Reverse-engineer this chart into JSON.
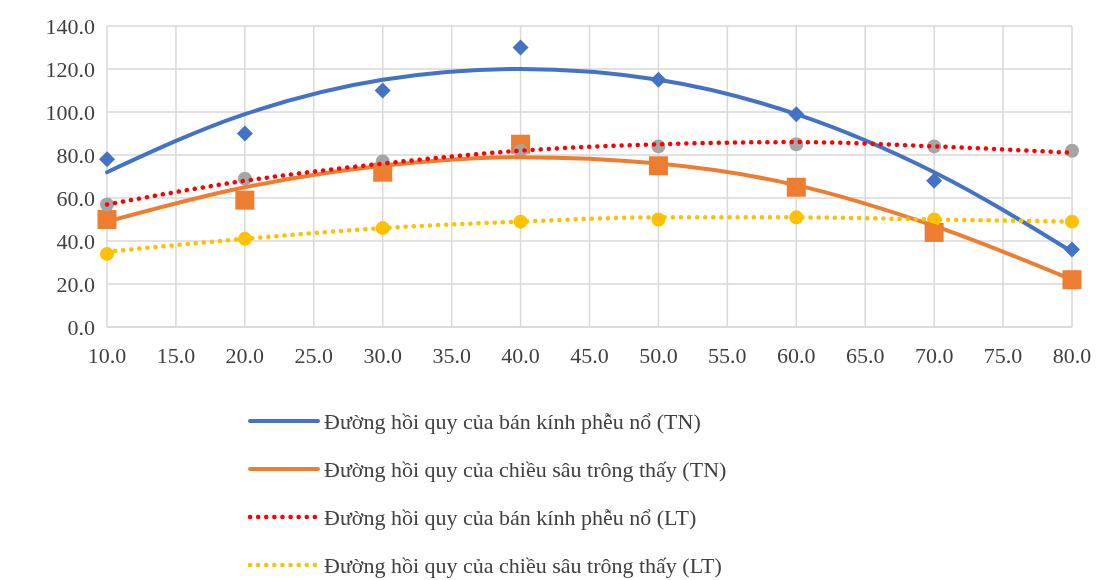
{
  "chart_data": {
    "type": "scatter",
    "x": [
      10,
      20,
      30,
      40,
      50,
      60,
      70,
      80
    ],
    "xlim": [
      10,
      80
    ],
    "xticks": [
      {
        "value": 10,
        "label": "10.0"
      },
      {
        "value": 15,
        "label": "15.0"
      },
      {
        "value": 20,
        "label": "20.0"
      },
      {
        "value": 25,
        "label": "25.0"
      },
      {
        "value": 30,
        "label": "30.0"
      },
      {
        "value": 35,
        "label": "35.0"
      },
      {
        "value": 40,
        "label": "40.0"
      },
      {
        "value": 45,
        "label": "45.0"
      },
      {
        "value": 50,
        "label": "50.0"
      },
      {
        "value": 55,
        "label": "55.0"
      },
      {
        "value": 60,
        "label": "60.0"
      },
      {
        "value": 65,
        "label": "65.0"
      },
      {
        "value": 70,
        "label": "70.0"
      },
      {
        "value": 75,
        "label": "75.0"
      },
      {
        "value": 80,
        "label": "80.0"
      }
    ],
    "ylim": [
      0,
      140
    ],
    "yticks": [
      {
        "value": 0,
        "label": "0.0"
      },
      {
        "value": 20,
        "label": "20.0"
      },
      {
        "value": 40,
        "label": "40.0"
      },
      {
        "value": 60,
        "label": "60.0"
      },
      {
        "value": 80,
        "label": "80.0"
      },
      {
        "value": 100,
        "label": "100.0"
      },
      {
        "value": 120,
        "label": "120.0"
      },
      {
        "value": 140,
        "label": "140.0"
      }
    ],
    "grid": true,
    "legend": "bottom",
    "series": [
      {
        "marker": "diamond",
        "color": "#4472c4",
        "values": [
          78,
          90,
          110,
          130,
          115,
          99,
          68,
          36
        ]
      },
      {
        "marker": "square",
        "color": "#ed7d31",
        "values": [
          50,
          59,
          72,
          85,
          75,
          65,
          44,
          22
        ]
      },
      {
        "marker": "circle",
        "color": "#a5a5a5",
        "values": [
          57,
          69,
          77,
          82,
          84,
          85,
          84,
          82
        ]
      },
      {
        "marker": "circle",
        "color": "#ffc000",
        "values": [
          34,
          41,
          46,
          49,
          50,
          51,
          50,
          49
        ]
      },
      {
        "type": "line",
        "name": "Đường hồi quy của bán kính phễu nổ (TN)",
        "line_style": "solid",
        "color": "#4472c4",
        "values": [
          72,
          99,
          115,
          120,
          115,
          99,
          72,
          35
        ]
      },
      {
        "type": "line",
        "name": "Đường hồi quy của chiều sâu trông thấy (TN)",
        "line_style": "solid",
        "color": "#ed7d31",
        "values": [
          49,
          65,
          75,
          79,
          76,
          66,
          47,
          22
        ]
      },
      {
        "type": "line",
        "name": "Đường hồi quy của bán kính phễu nổ (LT)",
        "line_style": "dotted",
        "color": "#ff0000",
        "values": [
          57,
          68,
          76,
          82,
          85,
          86,
          84,
          81
        ]
      },
      {
        "type": "line",
        "name": "Đường hồi quy của chiều sâu trông thấy (LT)",
        "line_style": "dotted",
        "color": "#ffc000",
        "values": [
          35,
          41,
          46,
          49,
          51,
          51,
          50,
          49
        ]
      }
    ]
  }
}
